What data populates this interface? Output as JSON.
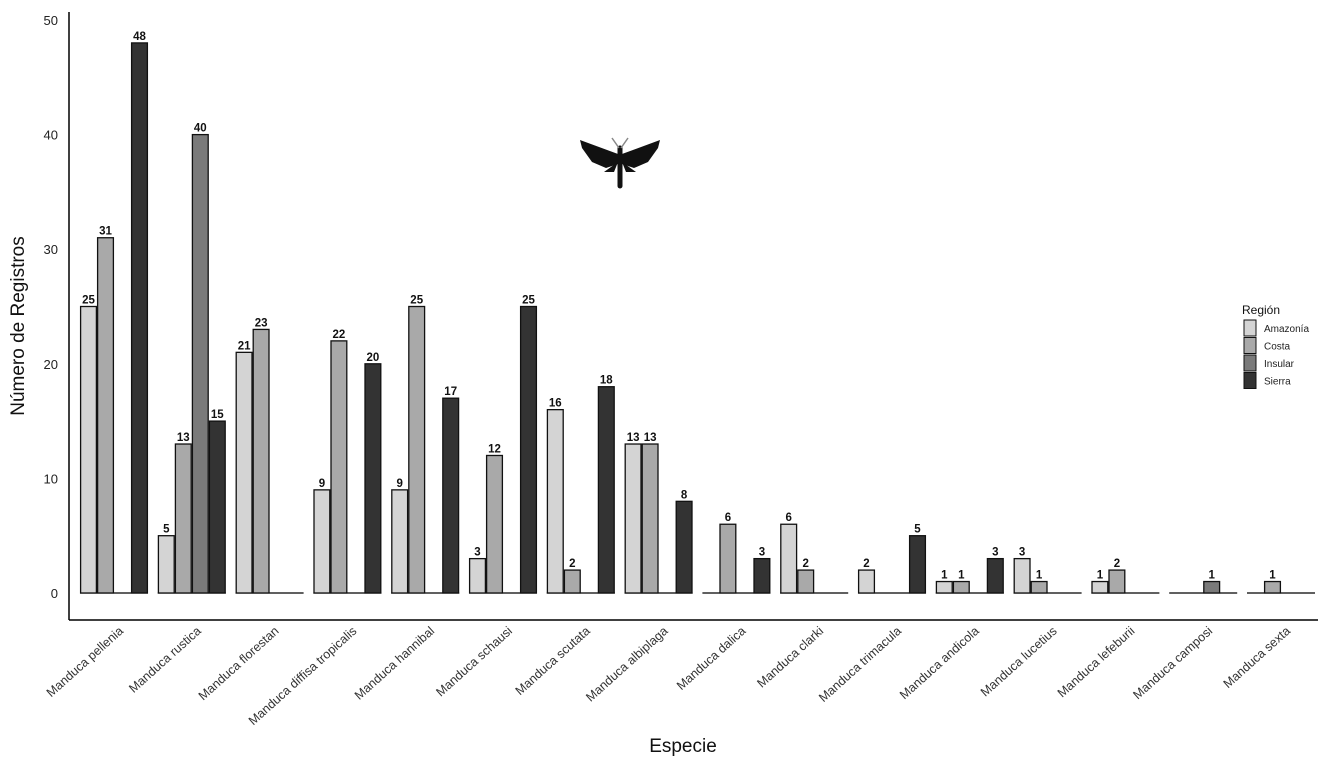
{
  "chart_data": {
    "type": "bar",
    "title": "",
    "xlabel": "Especie",
    "ylabel": "Número de Registros",
    "ylim": [
      0,
      50
    ],
    "yticks": [
      0,
      10,
      20,
      30,
      40,
      50
    ],
    "grid": false,
    "legend": {
      "title": "Región",
      "placement": "right"
    },
    "categories": [
      "Manduca pellenia",
      "Manduca rustica",
      "Manduca florestan",
      "Manduca diffisa tropicalis",
      "Manduca hannibal",
      "Manduca schausi",
      "Manduca scutata",
      "Manduca albiplaga",
      "Manduca dalica",
      "Manduca clarki",
      "Manduca trimacula",
      "Manduca andicola",
      "Manduca lucetius",
      "Manduca lefeburii",
      "Manduca camposi",
      "Manduca sexta"
    ],
    "series": [
      {
        "name": "Amazonía",
        "color": "#d4d4d4",
        "values": [
          25,
          5,
          21,
          9,
          9,
          3,
          16,
          13,
          0,
          6,
          2,
          1,
          3,
          1,
          0,
          0
        ]
      },
      {
        "name": "Costa",
        "color": "#a9a9a9",
        "values": [
          31,
          13,
          23,
          22,
          25,
          12,
          2,
          13,
          6,
          2,
          0,
          1,
          1,
          2,
          0,
          1
        ]
      },
      {
        "name": "Insular",
        "color": "#7a7a7a",
        "values": [
          0,
          40,
          0,
          0,
          0,
          0,
          0,
          0,
          0,
          0,
          0,
          0,
          0,
          0,
          1,
          0
        ]
      },
      {
        "name": "Sierra",
        "color": "#333333",
        "values": [
          48,
          15,
          0,
          20,
          17,
          25,
          18,
          8,
          3,
          0,
          5,
          3,
          0,
          0,
          0,
          0
        ]
      }
    ]
  },
  "decoration": {
    "icon": "moth-silhouette-icon"
  }
}
